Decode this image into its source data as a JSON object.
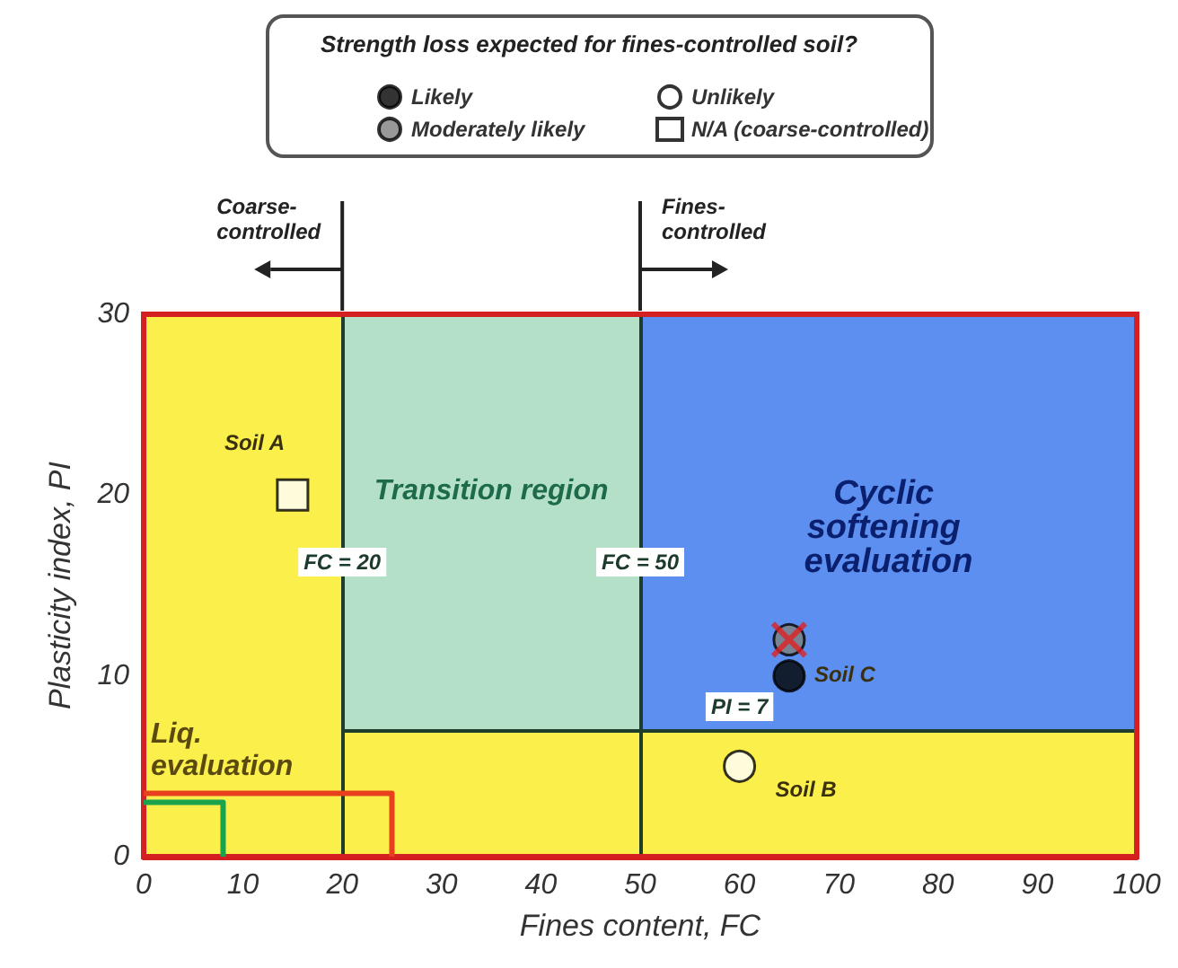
{
  "chart_data": {
    "type": "scatter",
    "legend_title": "Strength loss expected for fines-controlled soil?",
    "xlabel": "Fines content, FC",
    "ylabel": "Plasticity index, PI",
    "xlim": [
      0,
      100
    ],
    "ylim": [
      0,
      30
    ],
    "xticks": [
      0,
      10,
      20,
      30,
      40,
      50,
      60,
      70,
      80,
      90,
      100
    ],
    "yticks": [
      0,
      10,
      20,
      30
    ],
    "legend": "top",
    "series": [
      {
        "name": "Likely",
        "color": "#000000",
        "marker": "circle",
        "x": [
          65
        ],
        "values": [
          10
        ]
      },
      {
        "name": "Unlikely",
        "color": "#ffffff",
        "marker": "circle",
        "x": [
          60
        ],
        "values": [
          5
        ]
      },
      {
        "name": "Moderately likely",
        "color": "#7f7f7f",
        "marker": "circle",
        "x": [
          65
        ],
        "values": [
          12
        ]
      },
      {
        "name": "N/A (coarse-controlled)",
        "color": "#ffffff",
        "marker": "square",
        "x": [
          15
        ],
        "values": [
          20
        ]
      },
      {
        "color": "#e02020",
        "marker": "cross",
        "x": [
          65
        ],
        "values": [
          12
        ]
      },
      {
        "type": "line",
        "color": "#e8401c",
        "marker": "none",
        "x": [
          0,
          25,
          25
        ],
        "values": [
          3.5,
          3.5,
          0
        ]
      },
      {
        "type": "line",
        "color": "#1aa34a",
        "marker": "none",
        "x": [
          0,
          8,
          8
        ],
        "values": [
          3,
          3,
          0
        ]
      }
    ],
    "bands": [
      {
        "axis": "x",
        "from": 0,
        "to": 20,
        "color": "#fbef4c"
      },
      {
        "axis": "x",
        "from": 20,
        "to": 50,
        "label": "Transition region",
        "color": "#b5e0c8"
      },
      {
        "axis": "x",
        "from": 50,
        "to": 100,
        "label": "Cyclic softening evaluation",
        "color": "#5d8ff0"
      },
      {
        "axis": "y",
        "from": 0,
        "to": 7,
        "color": "#fbef4c"
      }
    ],
    "ref_lines": [
      {
        "axis": "x",
        "value": 20,
        "label": "FC = 20"
      },
      {
        "axis": "x",
        "value": 50,
        "label": "FC = 50"
      },
      {
        "axis": "y",
        "value": 7,
        "label": "PI = 7"
      }
    ],
    "annotations": [
      "Coarse-controlled",
      "Fines-controlled",
      "Liq. evaluation",
      {
        "text": "Soil A",
        "x": 15,
        "y": 20
      },
      {
        "text": "Soil B",
        "x": 60,
        "y": 5
      },
      {
        "text": "Soil C",
        "x": 65,
        "y": 10
      }
    ]
  }
}
